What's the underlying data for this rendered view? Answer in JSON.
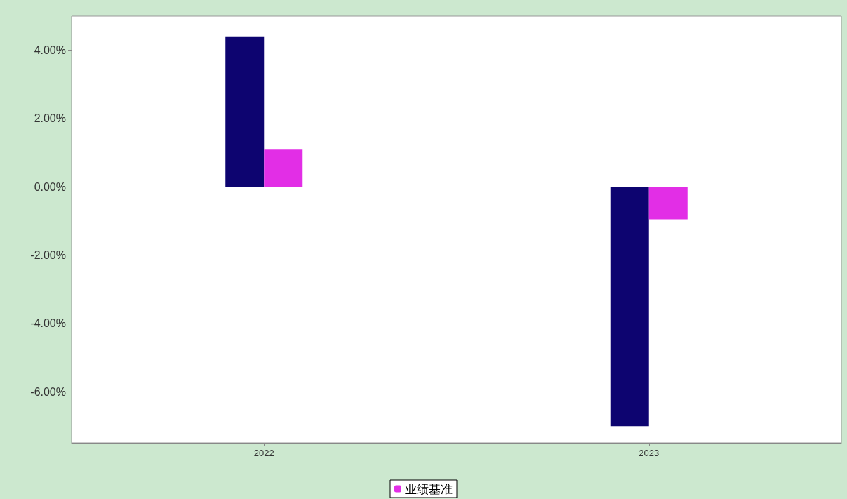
{
  "chart_data": {
    "type": "bar",
    "categories": [
      "2022",
      "2023"
    ],
    "series": [
      {
        "color": "#0d0470",
        "values": [
          4.39,
          -7.01
        ]
      },
      {
        "name": "业绩基准",
        "color": "#e22ee6",
        "values": [
          1.09,
          -0.95
        ]
      }
    ],
    "ylim": [
      -7.5,
      5
    ],
    "yticks": [
      {
        "value": -6,
        "label": "-6.00%"
      },
      {
        "value": -4,
        "label": "-4.00%"
      },
      {
        "value": -2,
        "label": "-2.00%"
      },
      {
        "value": 0,
        "label": "0.00%"
      },
      {
        "value": 2,
        "label": "2.00%"
      },
      {
        "value": 4,
        "label": "4.00%"
      }
    ],
    "grid": false,
    "legend": "bottom"
  }
}
